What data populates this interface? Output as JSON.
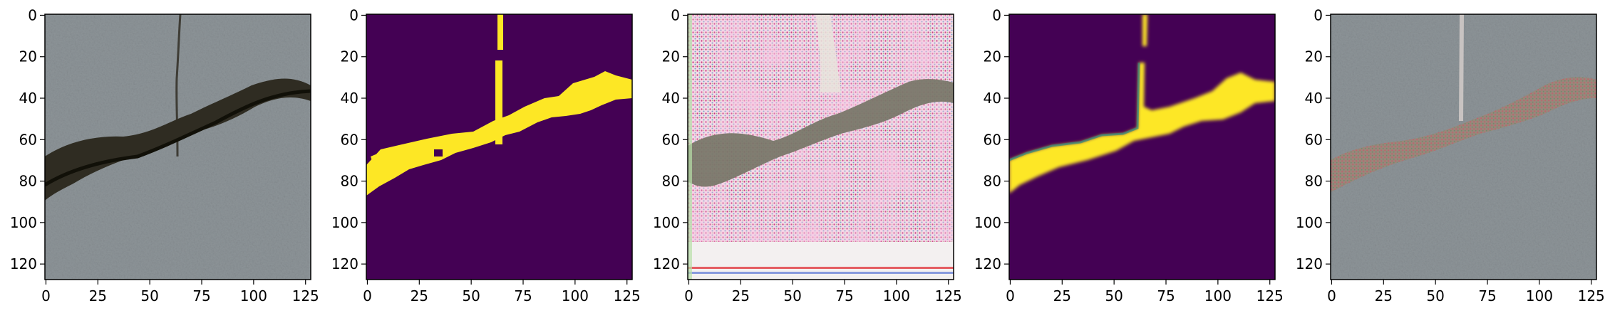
{
  "panels": [
    {
      "name": "input-concrete-photo",
      "kind": "photo"
    },
    {
      "name": "ground-truth-mask",
      "kind": "mask"
    },
    {
      "name": "generated-texture",
      "kind": "texture"
    },
    {
      "name": "predicted-mask",
      "kind": "soft-mask"
    },
    {
      "name": "composite-photo",
      "kind": "composite"
    }
  ],
  "axes": {
    "x_ticks": [
      "0",
      "25",
      "50",
      "75",
      "100",
      "125"
    ],
    "y_ticks": [
      "0",
      "20",
      "40",
      "60",
      "80",
      "100",
      "120"
    ],
    "x_range": [
      0,
      127
    ],
    "y_range": [
      0,
      127
    ]
  },
  "colors": {
    "mask_background": "#440154",
    "mask_foreground": "#fde725",
    "concrete": "#8f969a",
    "crack": "#2f2c22"
  }
}
